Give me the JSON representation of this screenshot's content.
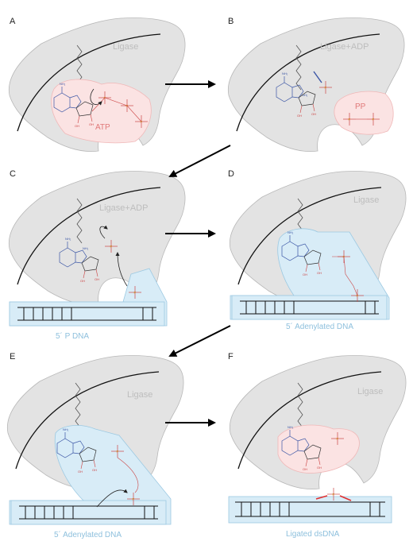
{
  "panels": [
    {
      "letter": "A",
      "protein_label": "Ligase",
      "molecule_label": "ATP",
      "dna_label": ""
    },
    {
      "letter": "B",
      "protein_label": "Ligase+ADP",
      "molecule_label": "PP",
      "dna_label": ""
    },
    {
      "letter": "C",
      "protein_label": "Ligase+ADP",
      "molecule_label": "",
      "dna_label": "5´ P DNA"
    },
    {
      "letter": "D",
      "protein_label": "Ligase",
      "molecule_label": "",
      "dna_label": "5´ Adenylated  DNA"
    },
    {
      "letter": "E",
      "protein_label": "Ligase",
      "molecule_label": "",
      "dna_label": "5´ Adenylated  DNA"
    },
    {
      "letter": "F",
      "protein_label": "Ligase",
      "molecule_label": "",
      "dna_label": "Ligated dsDNA"
    }
  ],
  "colors": {
    "protein_fill": "#e3e3e3",
    "protein_stroke": "#b8b8b8",
    "pink_fill": "#fbe3e3",
    "pink_stroke": "#f0b8b8",
    "blue_fill": "#d8ecf7",
    "blue_stroke": "#9cc9e2",
    "arrow": "#000000"
  }
}
